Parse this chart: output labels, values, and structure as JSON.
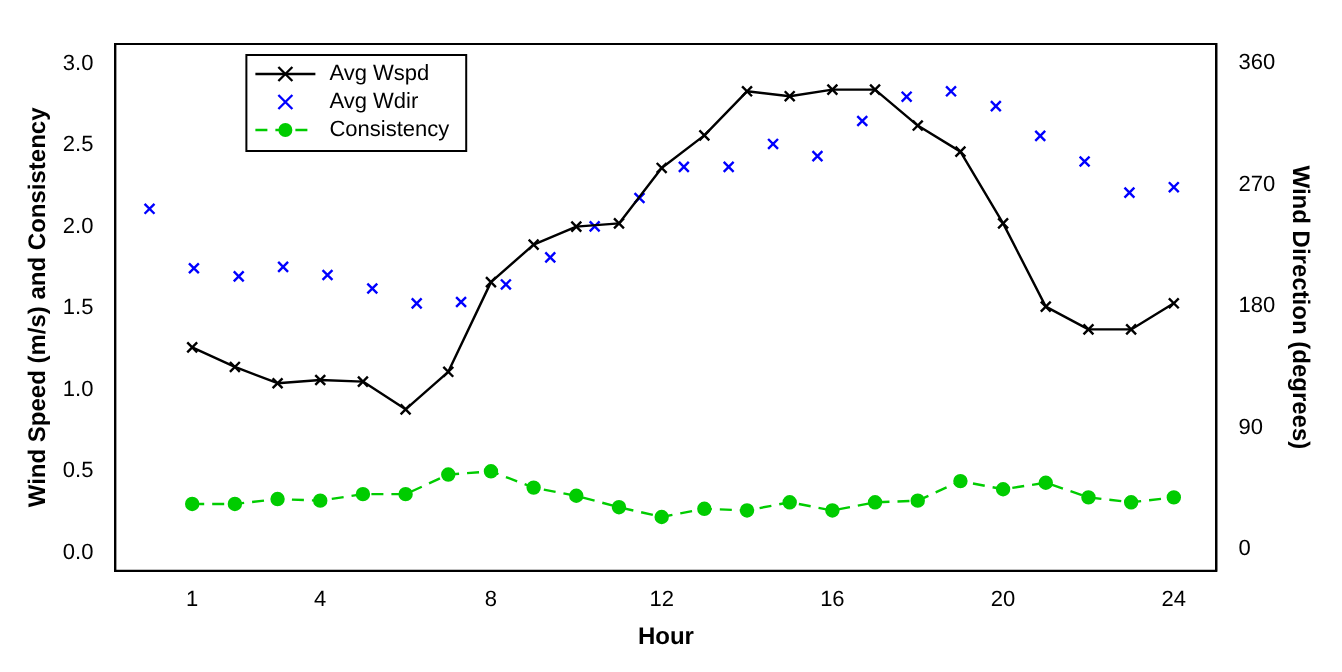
{
  "chart_data": {
    "type": "line",
    "xlabel": "Hour",
    "ylabel": "Wind Speed (m/s) and Consistency",
    "y2label": "Wind Direction (degrees)",
    "xlim": [
      -0.8,
      25
    ],
    "xticks": [
      1,
      4,
      8,
      12,
      16,
      20,
      24
    ],
    "ylim": [
      -0.11,
      3.12
    ],
    "yticks": [
      {
        "value": 0,
        "label": "0.0"
      },
      {
        "value": 0.5,
        "label": "0.5"
      },
      {
        "value": 1,
        "label": "1.0"
      },
      {
        "value": 1.5,
        "label": "1.5"
      },
      {
        "value": 2,
        "label": "2.0"
      },
      {
        "value": 2.5,
        "label": "2.5"
      },
      {
        "value": 3,
        "label": "3.0"
      }
    ],
    "y2lim": [
      -16,
      374
    ],
    "y2ticks": [
      0,
      90,
      180,
      270,
      360
    ],
    "grid": false,
    "legend": "top left",
    "series": [
      {
        "name": "Avg Wspd",
        "color": "#000000",
        "marker": "cross",
        "line_style": "solid",
        "x": [
          1,
          2,
          3,
          4,
          5,
          6,
          7,
          8,
          9,
          10,
          11,
          12,
          13,
          14,
          15,
          16,
          17,
          18,
          19,
          20,
          21,
          22,
          23,
          24
        ],
        "values": [
          1.26,
          1.14,
          1.04,
          1.06,
          1.05,
          0.88,
          1.11,
          1.66,
          1.89,
          2.0,
          2.02,
          2.36,
          2.56,
          2.83,
          2.8,
          2.84,
          2.84,
          2.62,
          2.46,
          2.02,
          1.51,
          1.37,
          1.37,
          1.53
        ]
      },
      {
        "name": "Avg Wdir",
        "type": "scatter",
        "axis": "y2",
        "color": "#0000ff",
        "marker": "cross",
        "x": [
          0,
          1.04,
          2.09,
          3.13,
          4.17,
          5.22,
          6.26,
          7.3,
          8.35,
          9.39,
          10.43,
          11.48,
          12.52,
          13.57,
          14.61,
          15.65,
          16.7,
          17.74,
          18.78,
          19.83,
          20.87,
          21.91,
          22.96,
          24
        ],
        "values": [
          252,
          208,
          202,
          209,
          203,
          193,
          182,
          183,
          196,
          216,
          239,
          260,
          283,
          283,
          300,
          291,
          317,
          335,
          339,
          328,
          306,
          287,
          264,
          268
        ]
      },
      {
        "name": "Consistency",
        "color": "#00cc00",
        "marker": "circle",
        "line_style": "dashed",
        "x": [
          1,
          2,
          3,
          4,
          5,
          6,
          7,
          8,
          9,
          10,
          11,
          12,
          13,
          14,
          15,
          16,
          17,
          18,
          19,
          20,
          21,
          22,
          23,
          24
        ],
        "values": [
          0.3,
          0.3,
          0.33,
          0.32,
          0.36,
          0.36,
          0.48,
          0.5,
          0.4,
          0.35,
          0.28,
          0.22,
          0.27,
          0.26,
          0.31,
          0.26,
          0.31,
          0.32,
          0.44,
          0.39,
          0.43,
          0.34,
          0.31,
          0.34
        ]
      }
    ]
  }
}
